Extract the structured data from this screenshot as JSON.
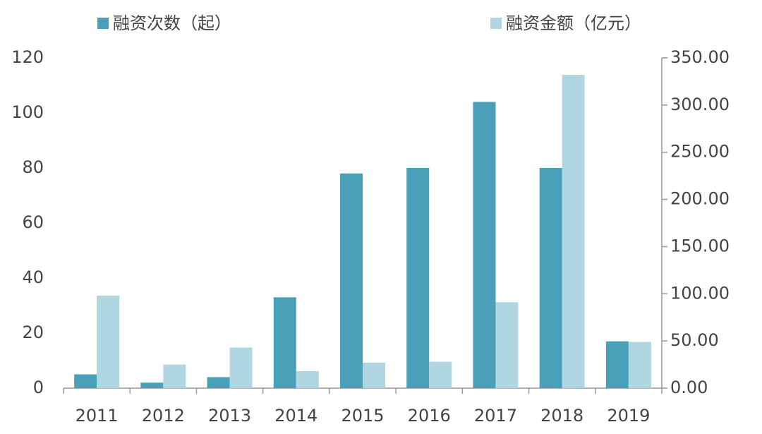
{
  "chart_data": {
    "type": "bar",
    "categories": [
      "2011",
      "2012",
      "2013",
      "2014",
      "2015",
      "2016",
      "2017",
      "2018",
      "2019"
    ],
    "series": [
      {
        "name": "融资次数（起）",
        "color": "#4aa0b8",
        "values": [
          5,
          2,
          4,
          33,
          78,
          80,
          104,
          80,
          17
        ]
      },
      {
        "name": "融资金额（亿元）",
        "color": "#b0d6e2",
        "axis": "y2",
        "values": [
          98,
          25,
          43,
          18,
          27,
          28,
          91,
          332,
          49
        ]
      }
    ],
    "ylim": [
      0,
      120
    ],
    "yticks": [
      0,
      20,
      40,
      60,
      80,
      100,
      120
    ],
    "y2lim": [
      0,
      350
    ],
    "y2ticks": [
      {
        "value": 0,
        "label": "0.00"
      },
      {
        "value": 50,
        "label": "50.00"
      },
      {
        "value": 100,
        "label": "100.00"
      },
      {
        "value": 150,
        "label": "150.00"
      },
      {
        "value": 200,
        "label": "200.00"
      },
      {
        "value": 250,
        "label": "250.00"
      },
      {
        "value": 300,
        "label": "300.00"
      },
      {
        "value": 350,
        "label": "350.00"
      }
    ],
    "grid": false
  }
}
